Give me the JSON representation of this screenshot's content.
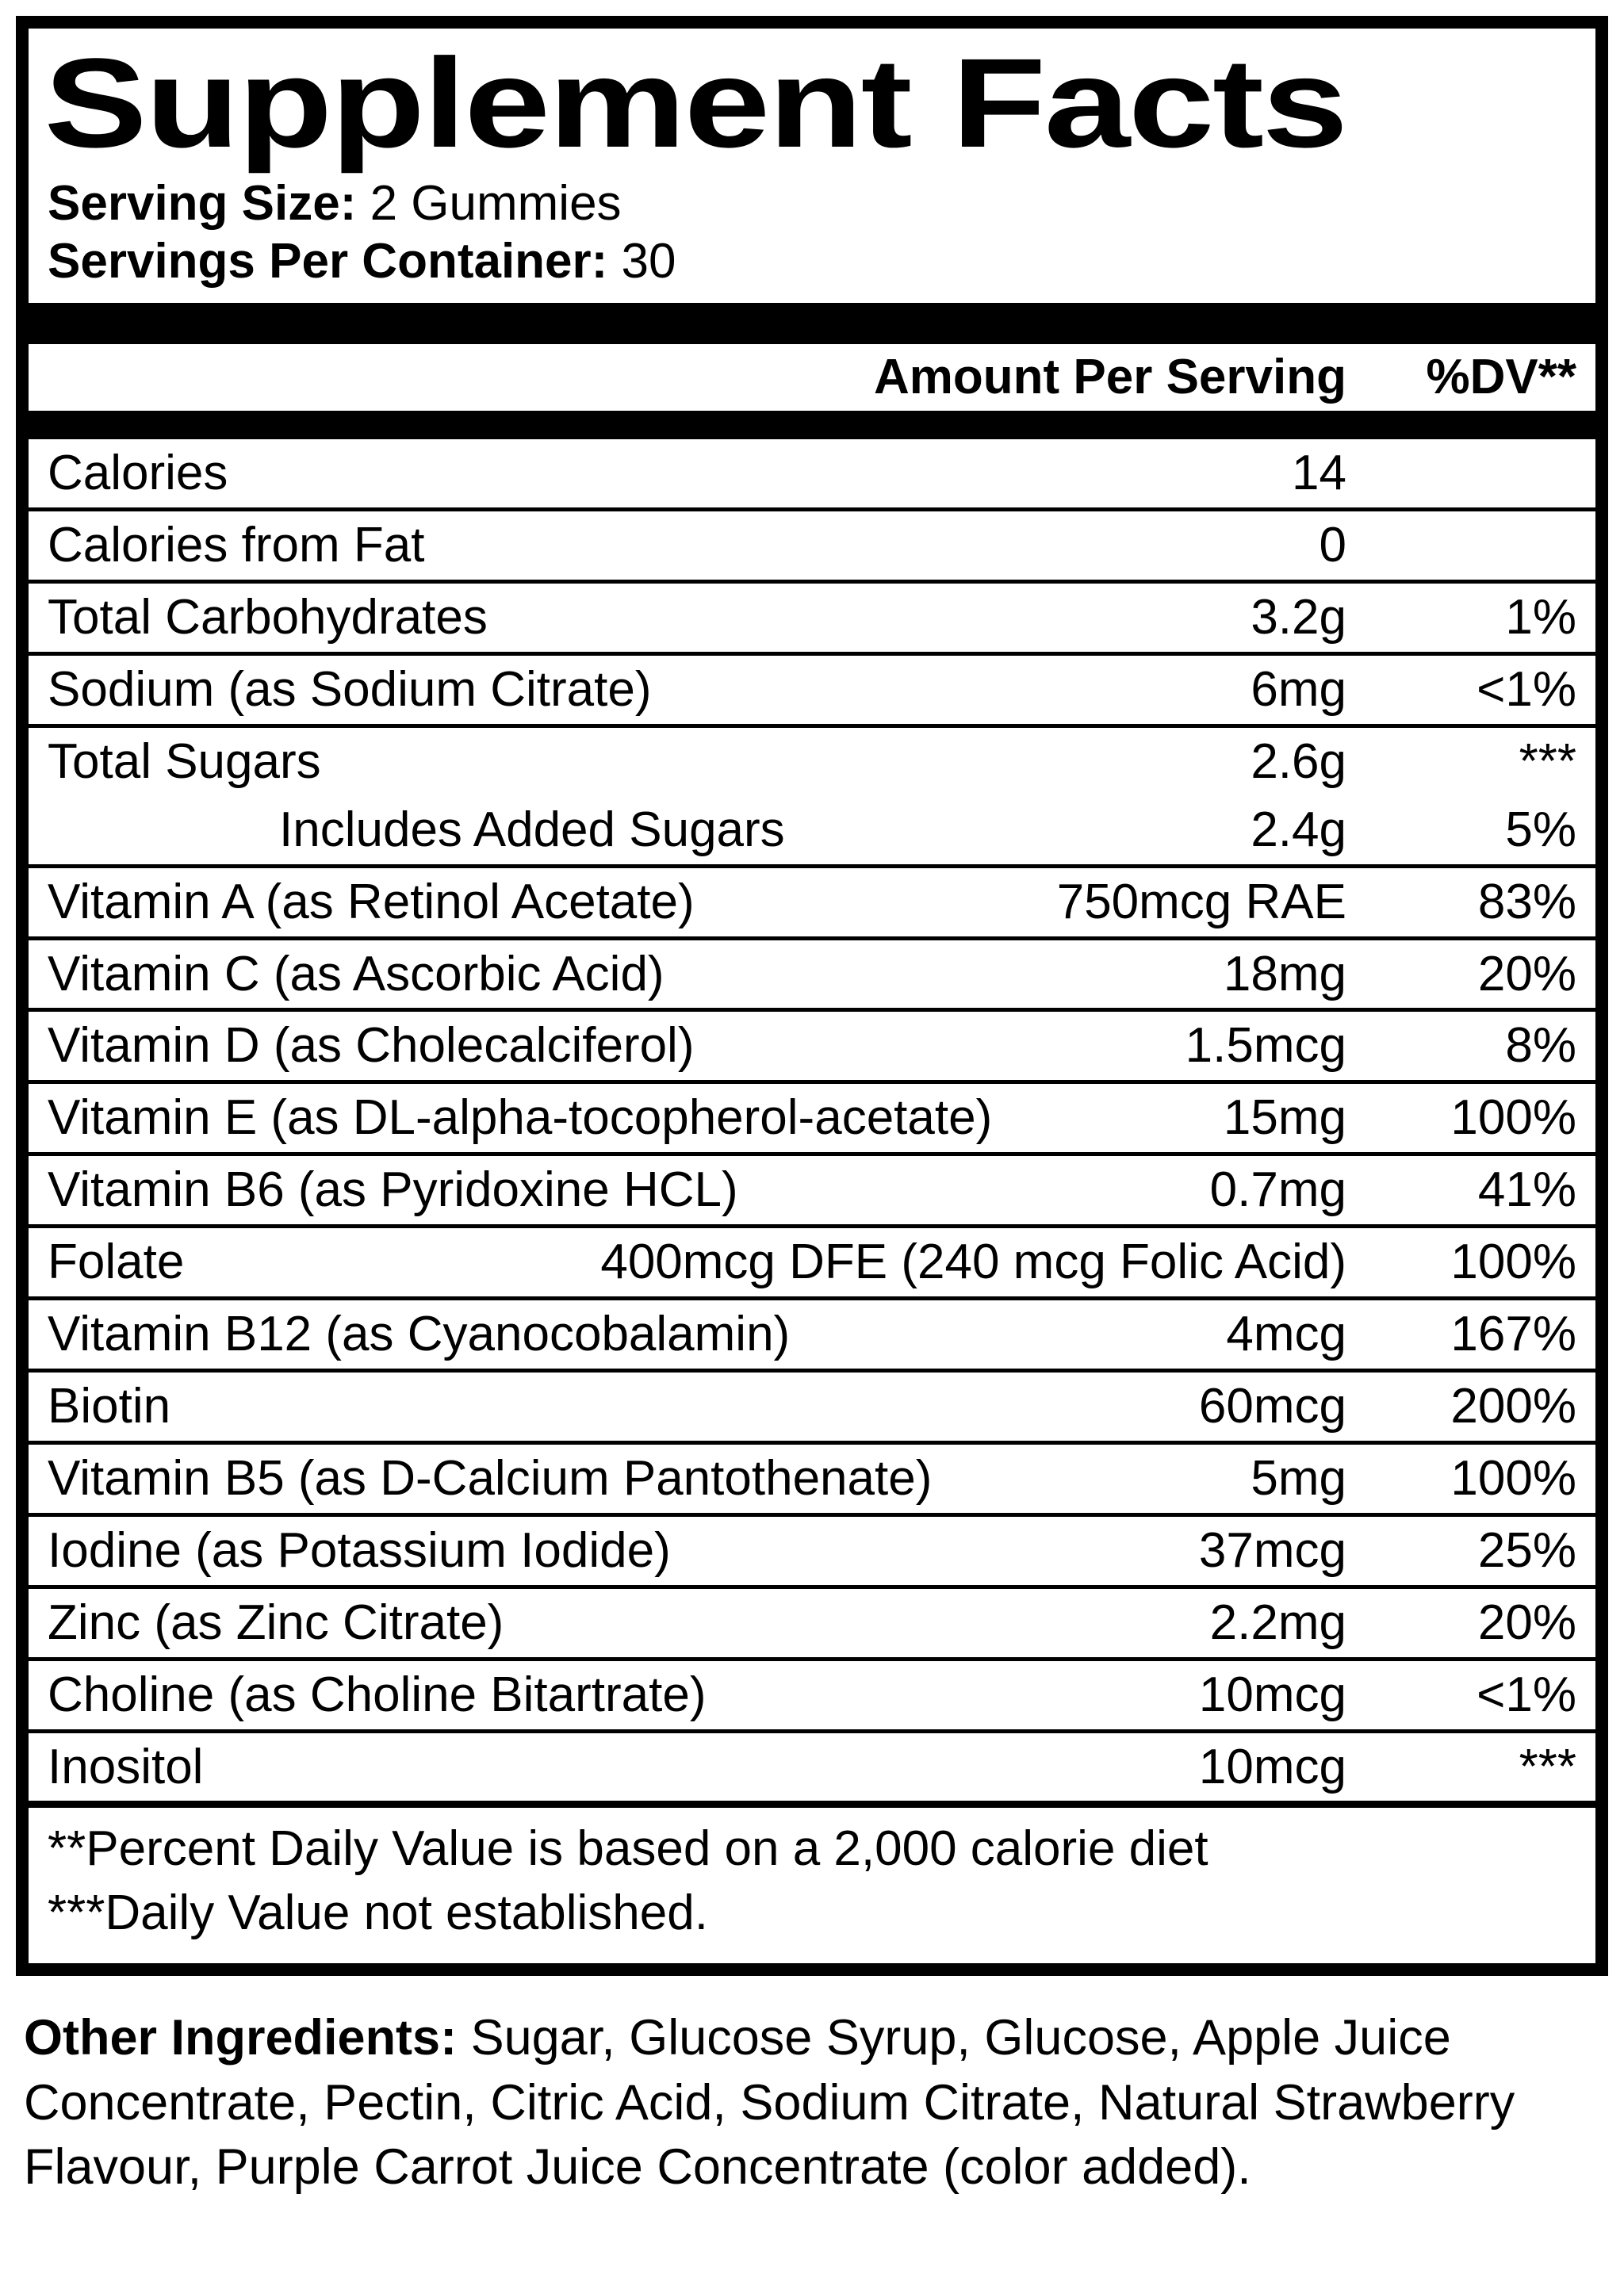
{
  "colors": {
    "ink": "#000000",
    "background": "#ffffff"
  },
  "title": "Supplement Facts",
  "serving": {
    "size_label": "Serving Size:",
    "size_value": "2 Gummies",
    "per_container_label": "Servings Per Container:",
    "per_container_value": "30"
  },
  "header": {
    "amount": "Amount Per Serving",
    "dv": "%DV**"
  },
  "rows": [
    {
      "name": "Calories",
      "amount": "14",
      "dv": ""
    },
    {
      "name": "Calories from Fat",
      "amount": "0",
      "dv": ""
    },
    {
      "name": "Total Carbohydrates",
      "amount": "3.2g",
      "dv": "1%"
    },
    {
      "name": "Sodium (as Sodium Citrate)",
      "amount": "6mg",
      "dv": "<1%"
    },
    {
      "name": "Total Sugars",
      "amount": "2.6g",
      "dv": "***",
      "sub": {
        "name": "Includes Added Sugars",
        "amount": "2.4g",
        "dv": "5%"
      }
    },
    {
      "name": "Vitamin A (as Retinol Acetate)",
      "amount": "750mcg RAE",
      "dv": "83%"
    },
    {
      "name": "Vitamin C (as Ascorbic Acid)",
      "amount": "18mg",
      "dv": "20%"
    },
    {
      "name": "Vitamin D (as Cholecalciferol)",
      "amount": "1.5mcg",
      "dv": "8%"
    },
    {
      "name": "Vitamin E (as DL-alpha-tocopherol-acetate)",
      "amount": "15mg",
      "dv": "100%"
    },
    {
      "name": "Vitamin B6 (as Pyridoxine HCL)",
      "amount": "0.7mg",
      "dv": "41%"
    },
    {
      "name": "Folate",
      "amount": "400mcg DFE (240 mcg Folic Acid)",
      "dv": "100%"
    },
    {
      "name": "Vitamin B12 (as Cyanocobalamin)",
      "amount": "4mcg",
      "dv": "167%"
    },
    {
      "name": "Biotin",
      "amount": "60mcg",
      "dv": "200%"
    },
    {
      "name": "Vitamin B5 (as D-Calcium Pantothenate)",
      "amount": "5mg",
      "dv": "100%"
    },
    {
      "name": "Iodine (as Potassium Iodide)",
      "amount": "37mcg",
      "dv": "25%"
    },
    {
      "name": "Zinc (as Zinc Citrate)",
      "amount": "2.2mg",
      "dv": "20%"
    },
    {
      "name": "Choline (as Choline Bitartrate)",
      "amount": "10mcg",
      "dv": "<1%"
    },
    {
      "name": "Inositol",
      "amount": "10mcg",
      "dv": "***"
    }
  ],
  "footnotes": [
    "**Percent Daily Value is based on a 2,000 calorie diet",
    "***Daily Value not established.",
    ""
  ],
  "other_ingredients": {
    "label": "Other Ingredients:",
    "text": " Sugar, Glucose Syrup, Glucose, Apple Juice Concentrate, Pectin, Citric Acid, Sodium Citrate, Natural Strawberry Flavour, Purple Carrot Juice Concentrate (color added)."
  }
}
